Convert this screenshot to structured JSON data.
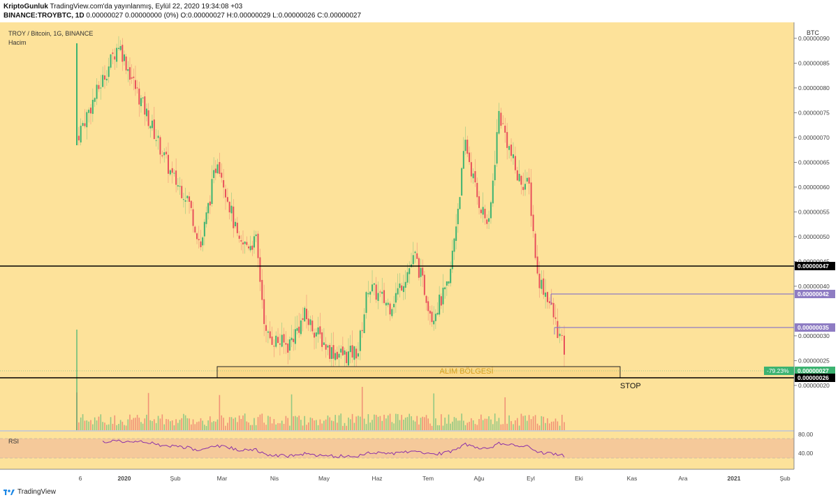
{
  "header": {
    "author": "KriptoGunluk",
    "published": "TradingView.com'da yayınlanmış, Eylül 22, 2020 19:34:08 +03",
    "symbol": "BINANCE:TROYBTC, 1D",
    "ohlc": "0.00000027 0.00000000 (0%) O:0.00000027 H:0.00000029 L:0.00000026 C:0.00000027"
  },
  "legend": {
    "title": "TROY / Bitcoin, 1G, BINANCE",
    "volume": "Hacim",
    "rsi": "RSI"
  },
  "price_axis": {
    "unit": "BTC",
    "ticks": [
      "0.00000090",
      "0.00000085",
      "0.00000080",
      "0.00000075",
      "0.00000070",
      "0.00000065",
      "0.00000060",
      "0.00000055",
      "0.00000050",
      "0.00000045",
      "0.00000040",
      "0.00000030",
      "0.00000025",
      "0.00000020"
    ],
    "badges": [
      {
        "text": "0.00000047",
        "bg": "#000000"
      },
      {
        "text": "0.00000042",
        "bg": "#8e7cc3"
      },
      {
        "text": "0.00000035",
        "bg": "#8e7cc3"
      },
      {
        "text": "0.00000027",
        "bg": "#3cb371"
      },
      {
        "text": "0.00000026",
        "bg": "#000000"
      }
    ],
    "change_badge": "-79.23%"
  },
  "rsi_axis": {
    "ticks": [
      "80.00",
      "40.00"
    ]
  },
  "time_axis": {
    "labels": [
      "6",
      "2020",
      "Şub",
      "Mar",
      "Nis",
      "May",
      "Haz",
      "Tem",
      "Ağu",
      "Eyl",
      "Eki",
      "Kas",
      "Ara",
      "2021",
      "Şub"
    ]
  },
  "annotations": {
    "zone_label": "ALIM BÖLGESİ",
    "stop_label": "STOP"
  },
  "footer": {
    "brand": "TradingView"
  },
  "colors": {
    "chart_bg": "#fde29a",
    "rsi_band": "#f5c99a",
    "up": "#3cb371",
    "down": "#e8505b",
    "purple": "#8e7cc3",
    "rsi_line": "#8b2fa8"
  },
  "chart_data": {
    "type": "candlestick",
    "title": "TROY / Bitcoin, 1G, BINANCE",
    "y_unit": "BTC",
    "x_range": [
      "2019-12-06",
      "2020-09-22"
    ],
    "y_range": [
      1.7e-07,
      9.2e-07
    ],
    "series": {
      "close": [
        {
          "date": "2019-12-06",
          "value": 7e-07
        },
        {
          "date": "2019-12-31",
          "value": 8.9e-07
        },
        {
          "date": "2020-01-10",
          "value": 8e-07
        },
        {
          "date": "2020-01-20",
          "value": 7.2e-07
        },
        {
          "date": "2020-02-01",
          "value": 6.2e-07
        },
        {
          "date": "2020-02-10",
          "value": 5.8e-07
        },
        {
          "date": "2020-02-18",
          "value": 4.8e-07
        },
        {
          "date": "2020-02-28",
          "value": 6.6e-07
        },
        {
          "date": "2020-03-05",
          "value": 5.8e-07
        },
        {
          "date": "2020-03-12",
          "value": 4.8e-07
        },
        {
          "date": "2020-03-22",
          "value": 4.9e-07
        },
        {
          "date": "2020-03-28",
          "value": 3e-07
        },
        {
          "date": "2020-04-10",
          "value": 2.8e-07
        },
        {
          "date": "2020-04-20",
          "value": 3.4e-07
        },
        {
          "date": "2020-05-05",
          "value": 2.7e-07
        },
        {
          "date": "2020-05-15",
          "value": 2.6e-07
        },
        {
          "date": "2020-05-22",
          "value": 2.7e-07
        },
        {
          "date": "2020-05-28",
          "value": 4e-07
        },
        {
          "date": "2020-06-10",
          "value": 3.6e-07
        },
        {
          "date": "2020-06-25",
          "value": 4.6e-07
        },
        {
          "date": "2020-07-05",
          "value": 3.4e-07
        },
        {
          "date": "2020-07-15",
          "value": 4e-07
        },
        {
          "date": "2020-07-25",
          "value": 6.9e-07
        },
        {
          "date": "2020-08-01",
          "value": 5.8e-07
        },
        {
          "date": "2020-08-08",
          "value": 5.2e-07
        },
        {
          "date": "2020-08-14",
          "value": 7.5e-07
        },
        {
          "date": "2020-08-25",
          "value": 6.2e-07
        },
        {
          "date": "2020-09-01",
          "value": 6e-07
        },
        {
          "date": "2020-09-06",
          "value": 4.2e-07
        },
        {
          "date": "2020-09-12",
          "value": 3.8e-07
        },
        {
          "date": "2020-09-18",
          "value": 3.1e-07
        },
        {
          "date": "2020-09-22",
          "value": 2.7e-07
        }
      ]
    },
    "horizontal_lines": [
      {
        "price": 4.7e-07,
        "color": "#000000"
      },
      {
        "price": 4.2e-07,
        "color": "#8e7cc3"
      },
      {
        "price": 3.5e-07,
        "color": "#8e7cc3"
      },
      {
        "price": 2.6e-07,
        "color": "#000000"
      }
    ],
    "zone": {
      "top": 2.8e-07,
      "bottom": 2.6e-07,
      "label": "ALIM BÖLGESİ"
    },
    "rsi_range": [
      0,
      100
    ]
  }
}
